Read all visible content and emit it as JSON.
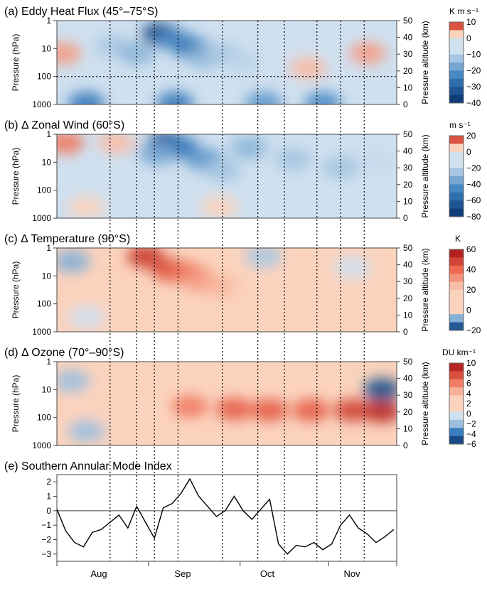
{
  "figure": {
    "panels": [
      {
        "id": "a",
        "title": "(a) Eddy Heat Flux (45°–75°S)",
        "left_axis_label": "Pressure (hPa)",
        "right_axis_label": "Pressure altitude (km)",
        "left_ticks": [
          "1",
          "10",
          "100",
          "1000"
        ],
        "right_ticks": [
          "50",
          "40",
          "30",
          "20",
          "10",
          "0"
        ],
        "colorbar_unit": "K m s⁻¹",
        "colorbar_ticks": [
          "10",
          "0",
          "−10",
          "−20",
          "−30",
          "−40"
        ]
      },
      {
        "id": "b",
        "title": "(b) Δ Zonal Wind (60°S)",
        "left_axis_label": "Pressure (hPa)",
        "right_axis_label": "Pressure altitude (km)",
        "left_ticks": [
          "1",
          "10",
          "100",
          "1000"
        ],
        "right_ticks": [
          "50",
          "40",
          "30",
          "20",
          "10",
          "0"
        ],
        "colorbar_unit": "m s⁻¹",
        "colorbar_ticks": [
          "20",
          "0",
          "−20",
          "−40",
          "−60",
          "−80"
        ]
      },
      {
        "id": "c",
        "title": "(c) Δ Temperature (90°S)",
        "left_axis_label": "Pressure (hPa)",
        "right_axis_label": "Pressure altitude (km)",
        "left_ticks": [
          "1",
          "10",
          "100",
          "1000"
        ],
        "right_ticks": [
          "50",
          "40",
          "30",
          "20",
          "10",
          "0"
        ],
        "colorbar_unit": "K",
        "colorbar_ticks": [
          "60",
          "40",
          "20",
          "0",
          "−20"
        ]
      },
      {
        "id": "d",
        "title": "(d) Δ Ozone (70°–90°S)",
        "left_axis_label": "Pressure (hPa)",
        "right_axis_label": "Pressure altitude (km)",
        "left_ticks": [
          "1",
          "10",
          "100",
          "1000"
        ],
        "right_ticks": [
          "50",
          "40",
          "30",
          "20",
          "10",
          "0"
        ],
        "colorbar_unit": "DU km⁻¹",
        "colorbar_ticks": [
          "10",
          "8",
          "6",
          "4",
          "2",
          "0",
          "−2",
          "−4",
          "−6"
        ]
      },
      {
        "id": "e",
        "title": "(e) Southern Annular Mode Index",
        "y_ticks": [
          "2",
          "1",
          "0",
          "−1",
          "−2",
          "−3"
        ]
      }
    ],
    "month_labels": [
      "Aug",
      "Sep",
      "Oct",
      "Nov"
    ],
    "colors": {
      "strong_blue": "#08306b",
      "mid_blue": "#3a7fbf",
      "light_blue": "#cfe0ef",
      "light_red": "#fbd3bd",
      "mid_red": "#ee6a50",
      "strong_red": "#a50f15",
      "sam_line": "#000000"
    }
  },
  "chart_data": [
    {
      "type": "heatmap",
      "title": "(a) Eddy Heat Flux (45°–75°S)",
      "ylabel": "Pressure (hPa)",
      "y2label": "Pressure altitude (km)",
      "y_log_scale": true,
      "ylim": [
        1000,
        1
      ],
      "y2lim": [
        0,
        50
      ],
      "unit": "K m s⁻¹",
      "color_range": [
        -40,
        10
      ],
      "blobs": [
        {
          "day": 35,
          "p": 3,
          "value": -35
        },
        {
          "day": 40,
          "p": 5,
          "value": -22
        },
        {
          "day": 46,
          "p": 10,
          "value": -25
        },
        {
          "day": 50,
          "p": 20,
          "value": -15
        },
        {
          "day": 19,
          "p": 8,
          "value": -12
        },
        {
          "day": 27,
          "p": 15,
          "value": -15
        },
        {
          "day": 56,
          "p": 15,
          "value": -12
        },
        {
          "day": 63,
          "p": 30,
          "value": -10
        },
        {
          "day": 80,
          "p": 10,
          "value": -8
        },
        {
          "day": 100,
          "p": 30,
          "value": -8
        },
        {
          "day": 10,
          "p": 900,
          "value": -25
        },
        {
          "day": 40,
          "p": 900,
          "value": -25
        },
        {
          "day": 70,
          "p": 900,
          "value": -20
        },
        {
          "day": 90,
          "p": 900,
          "value": -22
        },
        {
          "day": 2,
          "p": 15,
          "value": 5
        },
        {
          "day": 105,
          "p": 15,
          "value": 5
        },
        {
          "day": 85,
          "p": 50,
          "value": 4
        }
      ],
      "background_value": -5
    },
    {
      "type": "heatmap",
      "title": "(b) Δ Zonal Wind (60°S)",
      "ylabel": "Pressure (hPa)",
      "y2label": "Pressure altitude (km)",
      "y_log_scale": true,
      "ylim": [
        1000,
        1
      ],
      "y2lim": [
        0,
        50
      ],
      "unit": "m s⁻¹",
      "color_range": [
        -80,
        20
      ],
      "blobs": [
        {
          "day": 37,
          "p": 2,
          "value": -70
        },
        {
          "day": 42,
          "p": 3,
          "value": -50
        },
        {
          "day": 34,
          "p": 5,
          "value": -35
        },
        {
          "day": 50,
          "p": 8,
          "value": -40
        },
        {
          "day": 56,
          "p": 20,
          "value": -25
        },
        {
          "day": 65,
          "p": 3,
          "value": -30
        },
        {
          "day": 80,
          "p": 8,
          "value": -25
        },
        {
          "day": 96,
          "p": 15,
          "value": -25
        },
        {
          "day": 108,
          "p": 10,
          "value": -18
        },
        {
          "day": 18,
          "p": 5,
          "value": -15
        },
        {
          "day": 3,
          "p": 2,
          "value": 12
        },
        {
          "day": 20,
          "p": 2,
          "value": 8
        },
        {
          "day": 10,
          "p": 400,
          "value": 4
        },
        {
          "day": 55,
          "p": 400,
          "value": 4
        }
      ],
      "background_value": -8
    },
    {
      "type": "heatmap",
      "title": "(c) Δ Temperature (90°S)",
      "ylabel": "Pressure (hPa)",
      "y2label": "Pressure altitude (km)",
      "y_log_scale": true,
      "ylim": [
        1000,
        1
      ],
      "y2lim": [
        0,
        50
      ],
      "unit": "K",
      "color_range": [
        -20,
        60
      ],
      "blobs": [
        {
          "day": 30,
          "p": 2,
          "value": 50
        },
        {
          "day": 38,
          "p": 6,
          "value": 45
        },
        {
          "day": 44,
          "p": 8,
          "value": 38
        },
        {
          "day": 49,
          "p": 15,
          "value": 30
        },
        {
          "day": 56,
          "p": 25,
          "value": 25
        },
        {
          "day": 65,
          "p": 40,
          "value": 18
        },
        {
          "day": 75,
          "p": 50,
          "value": 14
        },
        {
          "day": 90,
          "p": 90,
          "value": 14
        },
        {
          "day": 103,
          "p": 110,
          "value": 12
        },
        {
          "day": 5,
          "p": 3,
          "value": -8
        },
        {
          "day": 70,
          "p": 2,
          "value": -6
        },
        {
          "day": 100,
          "p": 5,
          "value": -4
        },
        {
          "day": 10,
          "p": 300,
          "value": -4
        }
      ],
      "background_value": 2
    },
    {
      "type": "heatmap",
      "title": "(d) Δ Ozone (70°–90°S)",
      "ylabel": "Pressure (hPa)",
      "y2label": "Pressure altitude (km)",
      "y_log_scale": true,
      "ylim": [
        1000,
        1
      ],
      "y2lim": [
        0,
        50
      ],
      "unit": "DU km⁻¹",
      "color_range": [
        -6,
        10
      ],
      "blobs": [
        {
          "day": 10,
          "p": 50,
          "value": 3
        },
        {
          "day": 25,
          "p": 50,
          "value": 3
        },
        {
          "day": 45,
          "p": 40,
          "value": 6
        },
        {
          "day": 60,
          "p": 50,
          "value": 7
        },
        {
          "day": 72,
          "p": 55,
          "value": 7
        },
        {
          "day": 86,
          "p": 55,
          "value": 7
        },
        {
          "day": 100,
          "p": 55,
          "value": 8
        },
        {
          "day": 110,
          "p": 60,
          "value": 9
        },
        {
          "day": 110,
          "p": 10,
          "value": -5
        },
        {
          "day": 5,
          "p": 5,
          "value": -2
        },
        {
          "day": 10,
          "p": 300,
          "value": -2
        }
      ],
      "background_value": 1
    },
    {
      "type": "line",
      "title": "(e) Southern Annular Mode Index",
      "ylim": [
        -3.5,
        2.5
      ],
      "xlim": [
        0,
        115
      ],
      "x_unit": "days from 1 Jul",
      "series": [
        {
          "x": [
            0,
            3,
            6,
            9,
            12,
            15,
            18,
            21,
            24,
            27,
            30,
            33,
            36,
            39,
            42,
            45,
            48,
            51,
            54,
            57,
            60,
            63,
            66,
            69,
            72,
            75,
            78,
            81,
            84,
            87,
            90,
            93,
            96,
            99,
            102,
            105,
            108,
            111,
            114
          ],
          "values": [
            0.1,
            -1.4,
            -2.2,
            -2.5,
            -1.5,
            -1.3,
            -0.8,
            -0.3,
            -1.2,
            0.3,
            -0.8,
            -1.9,
            0.2,
            0.5,
            1.2,
            2.2,
            1.0,
            0.3,
            -0.4,
            0.0,
            1.0,
            0.0,
            -0.6,
            0.1,
            0.8,
            -2.3,
            -3.0,
            -2.4,
            -2.5,
            -2.2,
            -2.7,
            -2.3,
            -1.0,
            -0.3,
            -1.2,
            -1.6,
            -2.2,
            -1.8,
            -1.3
          ]
        }
      ]
    }
  ]
}
